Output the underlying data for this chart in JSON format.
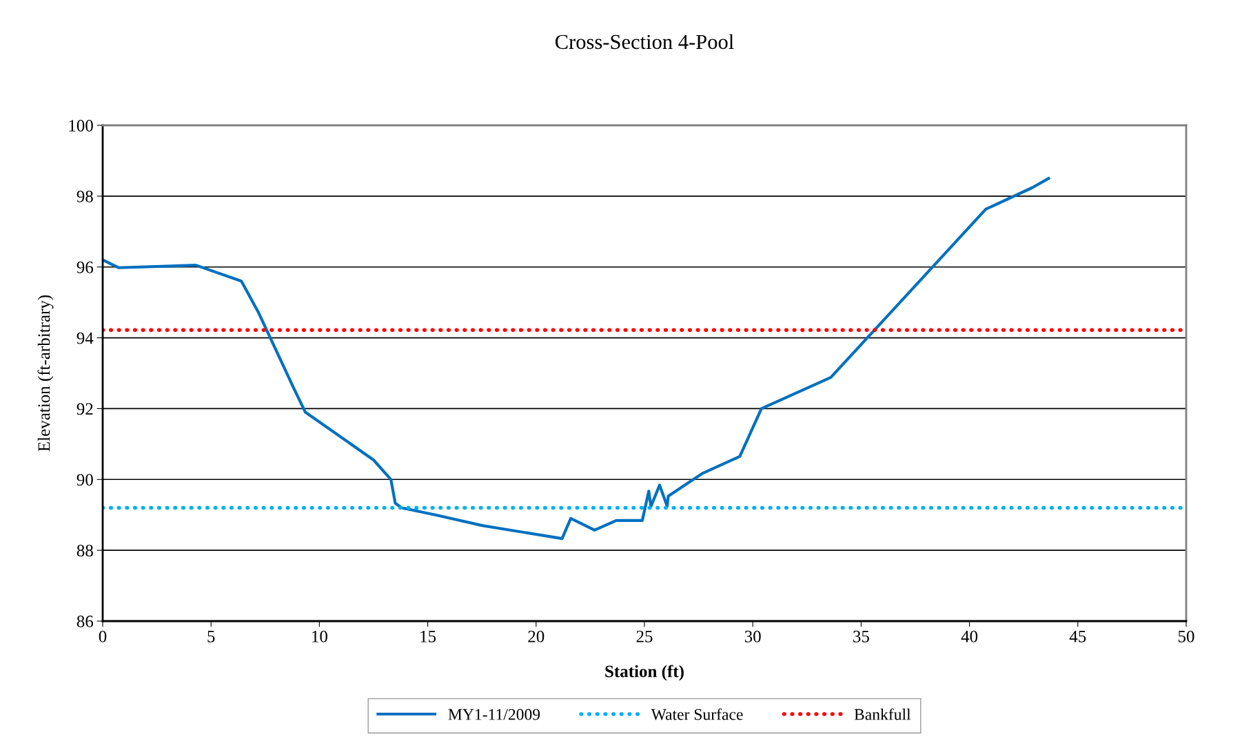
{
  "chart_data": {
    "type": "line",
    "title": "Cross-Section 4-Pool",
    "xlabel": "Station (ft)",
    "ylabel": "Elevation (ft-arbitrary)",
    "xlim": [
      0,
      50
    ],
    "xticks": [
      0,
      5,
      10,
      15,
      20,
      25,
      30,
      35,
      40,
      45,
      50
    ],
    "ylim": [
      86,
      100
    ],
    "yticks": [
      86,
      88,
      90,
      92,
      94,
      96,
      98,
      100
    ],
    "grid": "y",
    "legend": "bottom",
    "series": [
      {
        "name": "MY1-11/2009",
        "color": "#0070c0",
        "line_style": "solid",
        "x": [
          0,
          0.73,
          4.3,
          6.4,
          7.2,
          8.8,
          9.35,
          12.5,
          13.3,
          13.5,
          13.8,
          15.35,
          17.5,
          21.2,
          21.6,
          22.7,
          23.7,
          24.9,
          25.2,
          25.3,
          25.7,
          26.05,
          26.1,
          27.7,
          29.4,
          30.4,
          33.6,
          40.75,
          42.9,
          43.65
        ],
        "values": [
          96.2,
          95.98,
          96.05,
          95.6,
          94.7,
          92.6,
          91.9,
          90.55,
          90.0,
          89.33,
          89.2,
          89.0,
          88.7,
          88.33,
          88.9,
          88.57,
          88.84,
          88.84,
          89.67,
          89.24,
          89.84,
          89.24,
          89.53,
          90.18,
          90.65,
          92.0,
          92.88,
          97.63,
          98.24,
          98.5
        ]
      },
      {
        "name": "Water Surface",
        "color": "#00b0f0",
        "line_style": "dotted",
        "x": [
          0,
          50
        ],
        "values": [
          89.2,
          89.2
        ]
      },
      {
        "name": "Bankfull",
        "color": "#ff0000",
        "line_style": "dotted",
        "x": [
          0,
          50
        ],
        "values": [
          94.22,
          94.22
        ]
      }
    ]
  }
}
